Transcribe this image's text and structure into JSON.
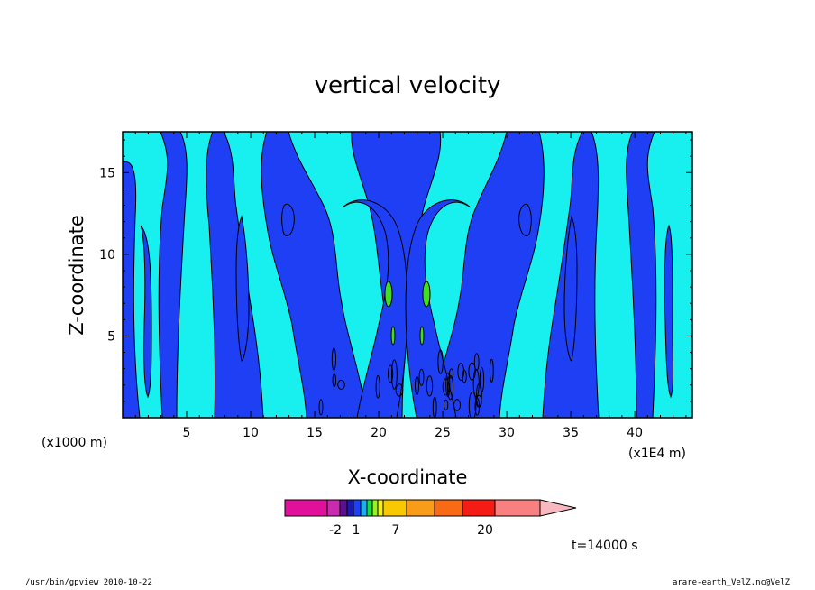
{
  "chart_data": {
    "type": "contour",
    "title": "vertical velocity",
    "xlabel": "X-coordinate",
    "ylabel": "Z-coordinate",
    "x_scale_label": "(x1000 m)",
    "x_unit_label": "(x1E4 m)",
    "xlim": [
      0,
      44.5
    ],
    "ylim": [
      0,
      17.5
    ],
    "x_ticks": [
      "5",
      "10",
      "15",
      "20",
      "25",
      "30",
      "35",
      "40"
    ],
    "y_ticks": [
      "5",
      "10",
      "15"
    ],
    "time_label": "t=14000  s",
    "colorbar": {
      "levels_shown": [
        "-2",
        "1",
        "7",
        "20"
      ],
      "colors": [
        "#e0109a",
        "#c82ab0",
        "#5a1090",
        "#1a1ab0",
        "#1f3ff5",
        "#18b0f0",
        "#14e03c",
        "#9cf020",
        "#f4f01a",
        "#f8c800",
        "#f89c1a",
        "#f86a14",
        "#f41c14",
        "#f88080",
        "#f8b8c0"
      ]
    },
    "regions": [
      {
        "name": "negative",
        "color": "#1f3ff5"
      },
      {
        "name": "slightly-positive",
        "color": "#18f0f0"
      },
      {
        "name": "positive",
        "color": "#40e020"
      }
    ]
  },
  "footer": {
    "left": "/usr/bin/gpview   2010-10-22",
    "right": "arare-earth_VelZ.nc@VelZ"
  }
}
